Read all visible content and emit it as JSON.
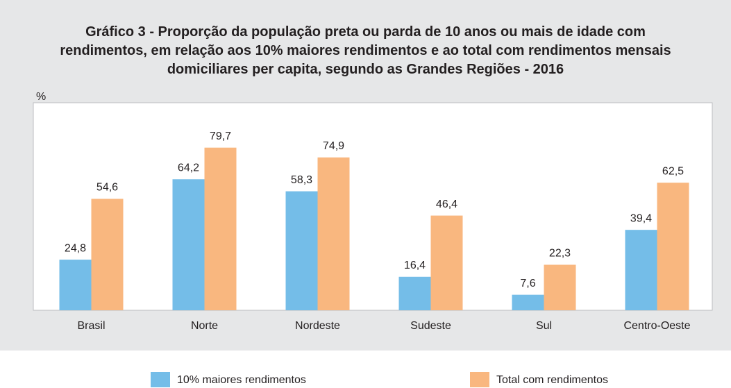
{
  "chart_data": {
    "type": "bar",
    "title": "Gráfico 3 - Proporção da população preta ou parda de 10 anos ou mais de idade com rendimentos, em relação aos 10% maiores rendimentos e ao total com rendimentos mensais domiciliares per capita, segundo as Grandes Regiões - 2016",
    "y_label": "%",
    "categories": [
      "Brasil",
      "Norte",
      "Nordeste",
      "Sudeste",
      "Sul",
      "Centro-Oeste"
    ],
    "series": [
      {
        "name": "10% maiores rendimentos",
        "color": "#74bde8",
        "values": [
          24.8,
          64.2,
          58.3,
          16.4,
          7.6,
          39.4
        ],
        "value_labels": [
          "24,8",
          "64,2",
          "58,3",
          "16,4",
          "7,6",
          "39,4"
        ]
      },
      {
        "name": "Total com rendimentos",
        "color": "#f9b77f",
        "values": [
          54.6,
          79.7,
          74.9,
          46.4,
          22.3,
          62.5
        ],
        "value_labels": [
          "54,6",
          "79,7",
          "74,9",
          "46,4",
          "22,3",
          "62,5"
        ]
      }
    ],
    "ylim": [
      0,
      100
    ]
  }
}
